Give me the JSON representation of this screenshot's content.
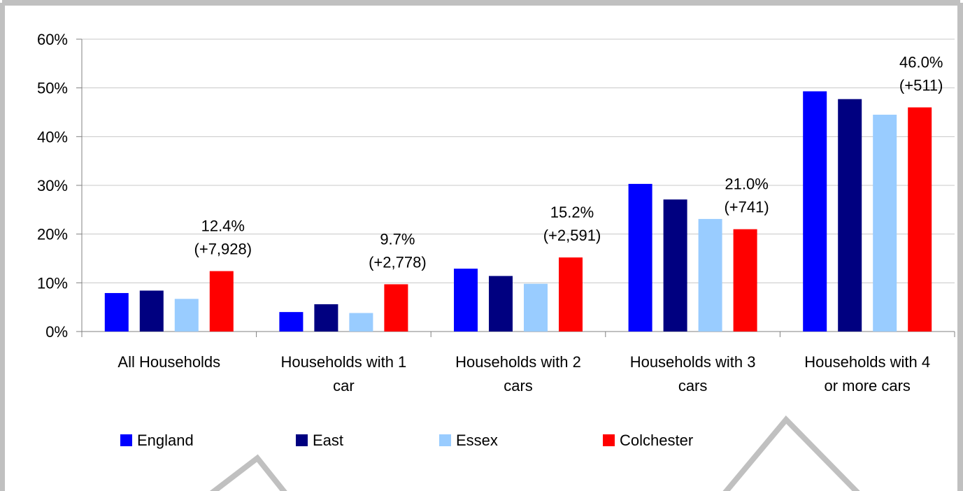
{
  "chart_data": {
    "type": "bar",
    "title": "",
    "xlabel": "",
    "ylabel": "",
    "ylim": [
      0,
      60
    ],
    "y_tick_values": [
      0,
      10,
      20,
      30,
      40,
      50,
      60
    ],
    "y_tick_labels": [
      "0%",
      "10%",
      "20%",
      "30%",
      "40%",
      "50%",
      "60%"
    ],
    "grid": true,
    "legend_position": "bottom",
    "categories": [
      [
        "All Households"
      ],
      [
        "Households with 1",
        "car"
      ],
      [
        "Households with 2",
        "cars"
      ],
      [
        "Households with 3",
        "cars"
      ],
      [
        "Households with 4",
        "or more cars"
      ]
    ],
    "series": [
      {
        "name": "England",
        "color": "#0000FF",
        "values": [
          7.9,
          4.0,
          12.9,
          30.3,
          49.3
        ]
      },
      {
        "name": "East",
        "color": "#000080",
        "values": [
          8.4,
          5.6,
          11.4,
          27.1,
          47.7
        ]
      },
      {
        "name": "Essex",
        "color": "#99CCFF",
        "values": [
          6.7,
          3.8,
          9.8,
          23.1,
          44.5
        ]
      },
      {
        "name": "Colchester",
        "color": "#FF0000",
        "values": [
          12.4,
          9.7,
          15.2,
          21.0,
          46.0
        ]
      }
    ],
    "annotations": [
      {
        "category_index": 0,
        "series_index": 3,
        "lines": [
          "12.4%",
          "(+7,928)"
        ]
      },
      {
        "category_index": 1,
        "series_index": 3,
        "lines": [
          "9.7%",
          "(+2,778)"
        ]
      },
      {
        "category_index": 2,
        "series_index": 3,
        "lines": [
          "15.2%",
          "(+2,591)"
        ]
      },
      {
        "category_index": 3,
        "series_index": 3,
        "lines": [
          "21.0%",
          "(+741)"
        ]
      },
      {
        "category_index": 4,
        "series_index": 3,
        "lines": [
          "46.0%",
          "(+511)"
        ]
      }
    ]
  }
}
